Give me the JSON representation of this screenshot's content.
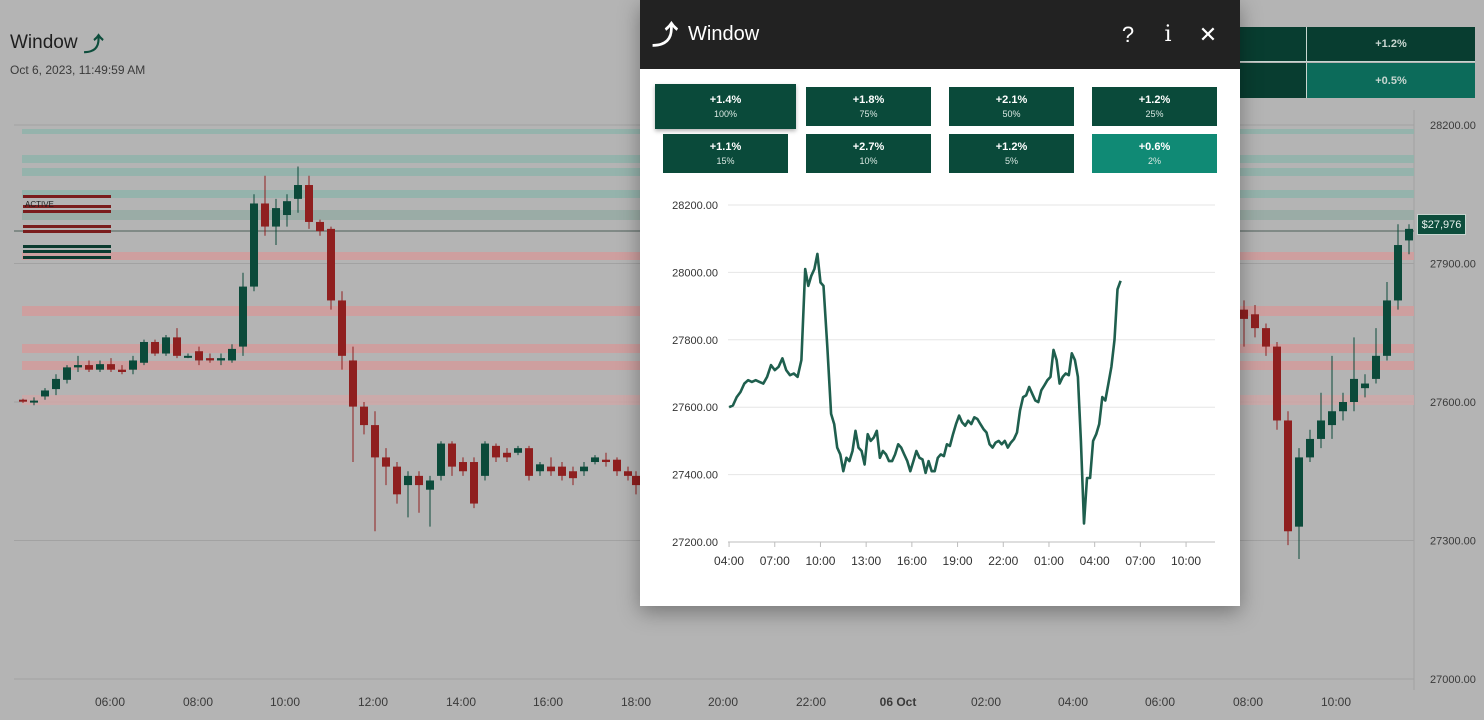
{
  "app": {
    "title": "Window",
    "title_icon": "trend-arrow-icon",
    "date": "Oct 6, 2023, 11:49:59 AM"
  },
  "bg_tiles": [
    {
      "label": ""
    },
    {
      "label": "+1.2%"
    },
    {
      "label": ""
    },
    {
      "label": "+0.5%"
    }
  ],
  "bg_chart": {
    "price_tag": "$27,976",
    "active_label": "ACTIVE",
    "y_ticks": [
      "28200.00",
      "27900.00",
      "27600.00",
      "27300.00",
      "27000.00"
    ],
    "x_ticks": [
      "06:00",
      "08:00",
      "10:00",
      "12:00",
      "14:00",
      "16:00",
      "18:00",
      "20:00",
      "22:00",
      "06 Oct",
      "02:00",
      "04:00",
      "06:00",
      "08:00",
      "10:00"
    ]
  },
  "dialog": {
    "title": "Window",
    "help_label": "?",
    "info_label": "i",
    "close_label": "✕",
    "colors": {
      "dark_tile": "#0a4a3a",
      "light_tile": "#108a75",
      "line": "#1f5f4e"
    },
    "tiles": [
      {
        "pct": "+1.4%",
        "sub": "100%"
      },
      {
        "pct": "+1.8%",
        "sub": "75%"
      },
      {
        "pct": "+2.1%",
        "sub": "50%"
      },
      {
        "pct": "+1.2%",
        "sub": "25%"
      },
      {
        "pct": "+1.1%",
        "sub": "15%"
      },
      {
        "pct": "+2.7%",
        "sub": "10%"
      },
      {
        "pct": "+1.2%",
        "sub": "5%"
      },
      {
        "pct": "+0.6%",
        "sub": "2%"
      }
    ]
  },
  "chart_data": {
    "type": "line",
    "title": "",
    "xlabel": "",
    "ylabel": "",
    "x_ticks": [
      "04:00",
      "07:00",
      "10:00",
      "13:00",
      "16:00",
      "19:00",
      "22:00",
      "01:00",
      "04:00",
      "07:00",
      "10:00"
    ],
    "y_ticks": [
      "28200.00",
      "28000.00",
      "27800.00",
      "27600.00",
      "27400.00",
      "27200.00"
    ],
    "ylim": [
      27200,
      28200
    ],
    "xlim_hours": [
      3.93,
      35.9
    ],
    "series": [
      {
        "points": [
          [
            4.0,
            27600
          ],
          [
            4.25,
            27605
          ],
          [
            4.5,
            27630
          ],
          [
            4.75,
            27645
          ],
          [
            5.0,
            27670
          ],
          [
            5.25,
            27680
          ],
          [
            5.5,
            27675
          ],
          [
            5.75,
            27680
          ],
          [
            6.0,
            27675
          ],
          [
            6.25,
            27670
          ],
          [
            6.5,
            27690
          ],
          [
            6.75,
            27725
          ],
          [
            7.0,
            27710
          ],
          [
            7.25,
            27720
          ],
          [
            7.5,
            27745
          ],
          [
            7.75,
            27710
          ],
          [
            8.0,
            27695
          ],
          [
            8.25,
            27700
          ],
          [
            8.5,
            27690
          ],
          [
            8.75,
            27740
          ],
          [
            9.0,
            28010
          ],
          [
            9.2,
            27960
          ],
          [
            9.4,
            27990
          ],
          [
            9.6,
            28010
          ],
          [
            9.8,
            28055
          ],
          [
            10.0,
            27970
          ],
          [
            10.2,
            27960
          ],
          [
            10.45,
            27780
          ],
          [
            10.7,
            27580
          ],
          [
            10.9,
            27550
          ],
          [
            11.1,
            27480
          ],
          [
            11.3,
            27460
          ],
          [
            11.5,
            27410
          ],
          [
            11.7,
            27450
          ],
          [
            11.9,
            27440
          ],
          [
            12.1,
            27470
          ],
          [
            12.3,
            27530
          ],
          [
            12.5,
            27480
          ],
          [
            12.7,
            27470
          ],
          [
            12.9,
            27430
          ],
          [
            13.1,
            27520
          ],
          [
            13.3,
            27500
          ],
          [
            13.5,
            27510
          ],
          [
            13.7,
            27530
          ],
          [
            13.9,
            27450
          ],
          [
            14.1,
            27470
          ],
          [
            14.3,
            27460
          ],
          [
            14.5,
            27440
          ],
          [
            14.7,
            27440
          ],
          [
            14.9,
            27460
          ],
          [
            15.1,
            27490
          ],
          [
            15.3,
            27480
          ],
          [
            15.5,
            27460
          ],
          [
            15.7,
            27440
          ],
          [
            15.9,
            27410
          ],
          [
            16.1,
            27440
          ],
          [
            16.3,
            27470
          ],
          [
            16.5,
            27450
          ],
          [
            16.7,
            27445
          ],
          [
            16.9,
            27405
          ],
          [
            17.1,
            27440
          ],
          [
            17.3,
            27410
          ],
          [
            17.5,
            27410
          ],
          [
            17.7,
            27450
          ],
          [
            17.9,
            27460
          ],
          [
            18.1,
            27455
          ],
          [
            18.3,
            27490
          ],
          [
            18.5,
            27485
          ],
          [
            18.7,
            27520
          ],
          [
            18.9,
            27550
          ],
          [
            19.1,
            27575
          ],
          [
            19.3,
            27555
          ],
          [
            19.5,
            27545
          ],
          [
            19.7,
            27560
          ],
          [
            19.9,
            27550
          ],
          [
            20.1,
            27570
          ],
          [
            20.3,
            27565
          ],
          [
            20.5,
            27550
          ],
          [
            20.7,
            27535
          ],
          [
            20.9,
            27525
          ],
          [
            21.1,
            27490
          ],
          [
            21.3,
            27480
          ],
          [
            21.5,
            27495
          ],
          [
            21.7,
            27500
          ],
          [
            21.9,
            27490
          ],
          [
            22.1,
            27500
          ],
          [
            22.3,
            27480
          ],
          [
            22.5,
            27495
          ],
          [
            22.7,
            27505
          ],
          [
            22.9,
            27525
          ],
          [
            23.1,
            27590
          ],
          [
            23.3,
            27630
          ],
          [
            23.5,
            27635
          ],
          [
            23.7,
            27660
          ],
          [
            23.9,
            27640
          ],
          [
            24.1,
            27620
          ],
          [
            24.3,
            27615
          ],
          [
            24.5,
            27650
          ],
          [
            24.7,
            27665
          ],
          [
            24.9,
            27680
          ],
          [
            25.1,
            27690
          ],
          [
            25.3,
            27770
          ],
          [
            25.5,
            27740
          ],
          [
            25.7,
            27670
          ],
          [
            25.9,
            27690
          ],
          [
            26.1,
            27700
          ],
          [
            26.3,
            27695
          ],
          [
            26.5,
            27760
          ],
          [
            26.7,
            27740
          ],
          [
            26.9,
            27690
          ],
          [
            27.1,
            27500
          ],
          [
            27.3,
            27255
          ],
          [
            27.5,
            27390
          ],
          [
            27.7,
            27390
          ],
          [
            27.9,
            27500
          ],
          [
            28.1,
            27520
          ],
          [
            28.3,
            27550
          ],
          [
            28.5,
            27630
          ],
          [
            28.7,
            27620
          ],
          [
            28.9,
            27670
          ],
          [
            29.1,
            27720
          ],
          [
            29.3,
            27800
          ],
          [
            29.5,
            27950
          ],
          [
            29.7,
            27975
          ]
        ]
      }
    ]
  }
}
